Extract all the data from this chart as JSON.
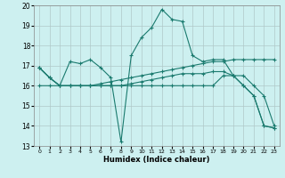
{
  "xlabel": "Humidex (Indice chaleur)",
  "xlim": [
    -0.5,
    23.5
  ],
  "ylim": [
    13,
    20
  ],
  "xticks": [
    0,
    1,
    2,
    3,
    4,
    5,
    6,
    7,
    8,
    9,
    10,
    11,
    12,
    13,
    14,
    15,
    16,
    17,
    18,
    19,
    20,
    21,
    22,
    23
  ],
  "yticks": [
    13,
    14,
    15,
    16,
    17,
    18,
    19,
    20
  ],
  "bg_color": "#cdf0f0",
  "grid_color": "#b0c8c8",
  "line_color": "#1a7a6e",
  "lines": [
    {
      "x": [
        0,
        1,
        2,
        3,
        4,
        5,
        6,
        7,
        8,
        9,
        10,
        11,
        12,
        13,
        14,
        15,
        16,
        17,
        18,
        19,
        20,
        21,
        22,
        23
      ],
      "y": [
        16.9,
        16.4,
        16.0,
        17.2,
        17.1,
        17.3,
        16.9,
        16.4,
        13.2,
        17.5,
        18.4,
        18.9,
        19.8,
        19.3,
        19.2,
        17.5,
        17.2,
        17.3,
        17.3,
        16.5,
        16.0,
        15.5,
        14.0,
        13.9
      ]
    },
    {
      "x": [
        0,
        1,
        2,
        3,
        4,
        5,
        6,
        7,
        8,
        9,
        10,
        11,
        12,
        13,
        14,
        15,
        16,
        17,
        18,
        19,
        20,
        21,
        22,
        23
      ],
      "y": [
        16.9,
        16.4,
        16.0,
        16.0,
        16.0,
        16.0,
        16.1,
        16.2,
        16.3,
        16.4,
        16.5,
        16.6,
        16.7,
        16.8,
        16.9,
        17.0,
        17.1,
        17.2,
        17.2,
        17.3,
        17.3,
        17.3,
        17.3,
        17.3
      ]
    },
    {
      "x": [
        0,
        1,
        2,
        3,
        4,
        5,
        6,
        7,
        8,
        9,
        10,
        11,
        12,
        13,
        14,
        15,
        16,
        17,
        18,
        19,
        20,
        21,
        22,
        23
      ],
      "y": [
        16.9,
        16.4,
        16.0,
        16.0,
        16.0,
        16.0,
        16.0,
        16.0,
        16.0,
        16.0,
        16.0,
        16.0,
        16.0,
        16.0,
        16.0,
        16.0,
        16.0,
        16.0,
        16.5,
        16.5,
        16.0,
        15.5,
        14.0,
        13.9
      ]
    },
    {
      "x": [
        0,
        1,
        2,
        3,
        4,
        5,
        6,
        7,
        8,
        9,
        10,
        11,
        12,
        13,
        14,
        15,
        16,
        17,
        18,
        19,
        20,
        21,
        22,
        23
      ],
      "y": [
        16.0,
        16.0,
        16.0,
        16.0,
        16.0,
        16.0,
        16.0,
        16.0,
        16.0,
        16.1,
        16.2,
        16.3,
        16.4,
        16.5,
        16.6,
        16.6,
        16.6,
        16.7,
        16.7,
        16.5,
        16.5,
        16.0,
        15.5,
        14.0
      ]
    }
  ]
}
